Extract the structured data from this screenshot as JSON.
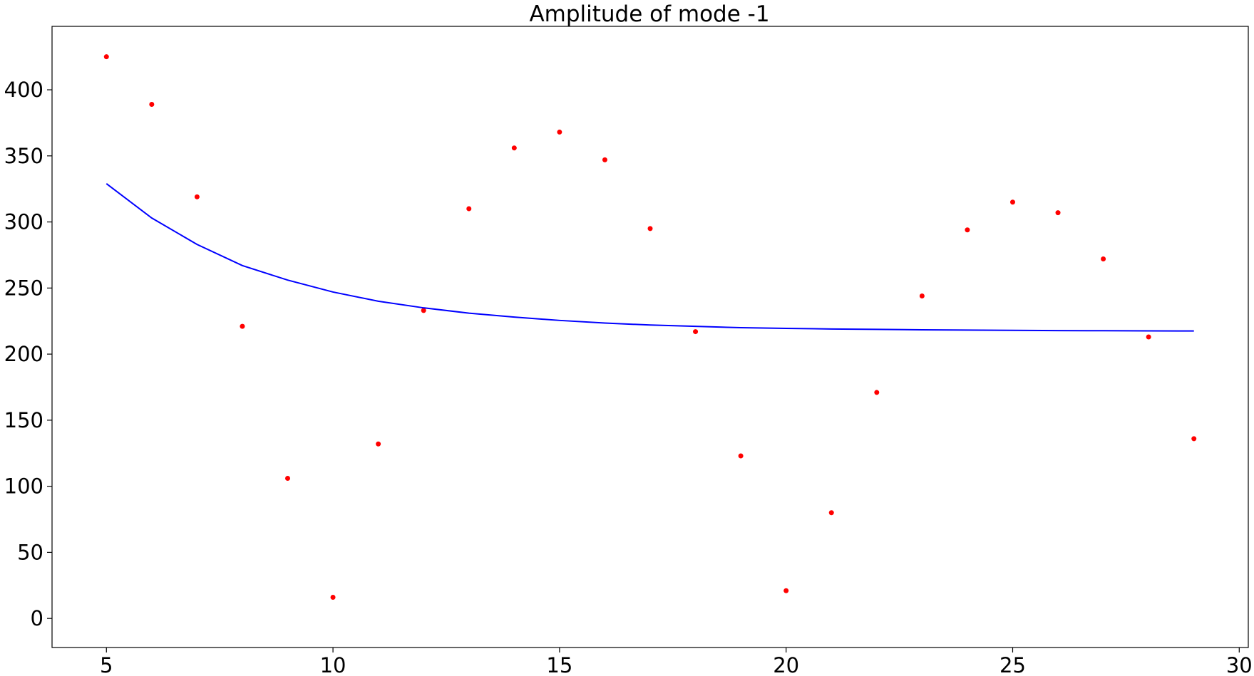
{
  "chart_data": {
    "type": "scatter",
    "title": "Amplitude of mode -1",
    "xlabel": "",
    "ylabel": "",
    "xlim": [
      3.8,
      30.2
    ],
    "ylim": [
      -22,
      448
    ],
    "x_ticks": [
      5,
      10,
      15,
      20,
      25,
      30
    ],
    "y_ticks": [
      0,
      50,
      100,
      150,
      200,
      250,
      300,
      350,
      400
    ],
    "grid": false,
    "legend": "none",
    "series": [
      {
        "kind": "scatter",
        "color": "#ff0000",
        "points": [
          [
            5,
            425
          ],
          [
            6,
            389
          ],
          [
            7,
            319
          ],
          [
            8,
            221
          ],
          [
            9,
            106
          ],
          [
            10,
            16
          ],
          [
            11,
            132
          ],
          [
            12,
            233
          ],
          [
            13,
            310
          ],
          [
            14,
            356
          ],
          [
            15,
            368
          ],
          [
            16,
            347
          ],
          [
            17,
            295
          ],
          [
            18,
            217
          ],
          [
            19,
            123
          ],
          [
            20,
            21
          ],
          [
            21,
            80
          ],
          [
            22,
            171
          ],
          [
            23,
            244
          ],
          [
            24,
            294
          ],
          [
            25,
            315
          ],
          [
            26,
            307
          ],
          [
            27,
            272
          ],
          [
            28,
            213
          ],
          [
            29,
            136
          ]
        ]
      },
      {
        "kind": "line",
        "color": "#0000ff",
        "points": [
          [
            5,
            329
          ],
          [
            6,
            303
          ],
          [
            7,
            283
          ],
          [
            8,
            267
          ],
          [
            9,
            256
          ],
          [
            10,
            247
          ],
          [
            11,
            240
          ],
          [
            12,
            235
          ],
          [
            13,
            231
          ],
          [
            14,
            228
          ],
          [
            15,
            225.5
          ],
          [
            16,
            223.5
          ],
          [
            17,
            222
          ],
          [
            18,
            221
          ],
          [
            19,
            220
          ],
          [
            20,
            219.5
          ],
          [
            21,
            219
          ],
          [
            22,
            218.7
          ],
          [
            23,
            218.4
          ],
          [
            24,
            218.2
          ],
          [
            25,
            218
          ],
          [
            26,
            217.8
          ],
          [
            27,
            217.7
          ],
          [
            28,
            217.6
          ],
          [
            29,
            217.5
          ]
        ]
      }
    ]
  }
}
